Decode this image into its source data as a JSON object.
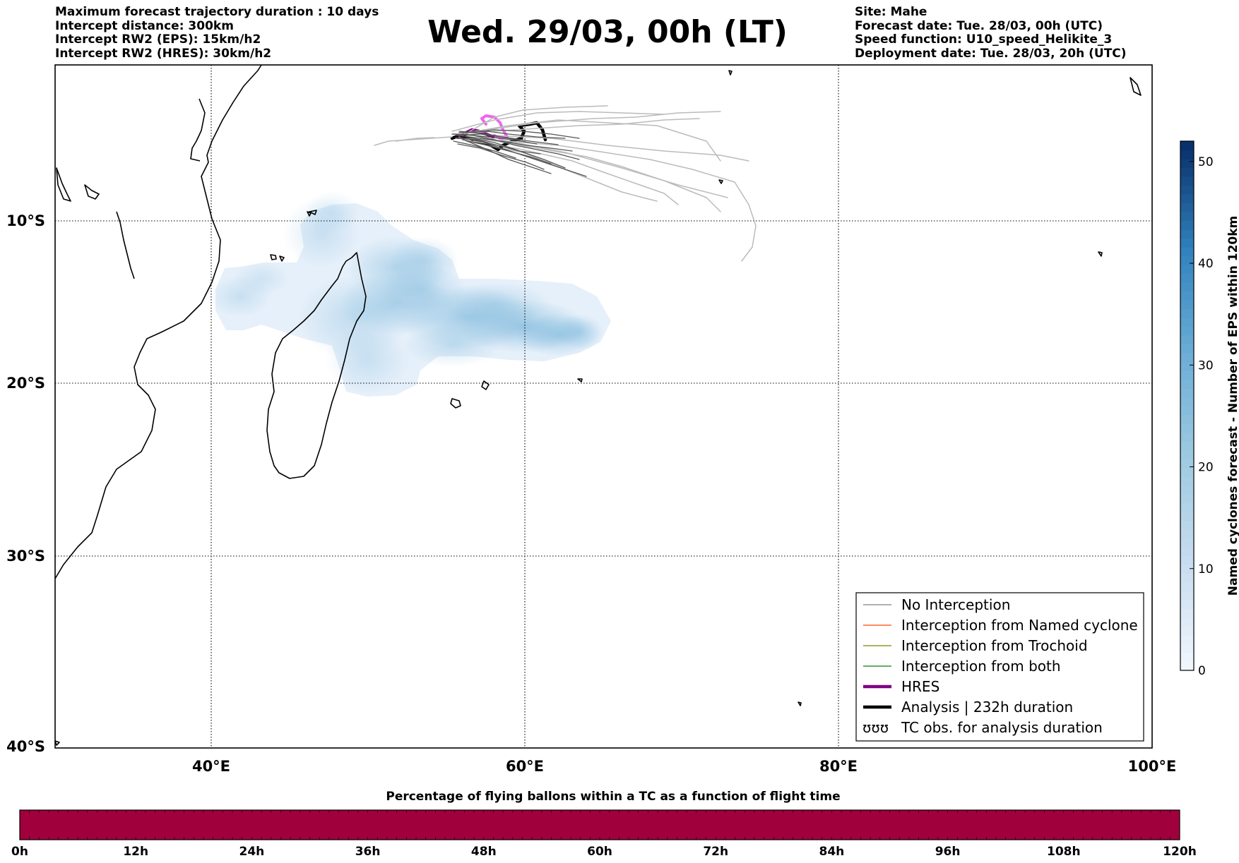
{
  "header_left": [
    "Maximum forecast trajectory duration : 10 days",
    "Intercept distance: 300km",
    "Intercept RW2 (EPS):  15km/h2",
    "Intercept RW2 (HRES): 30km/h2"
  ],
  "header_right": [
    "Site: Mahe",
    "Forecast date: Tue. 28/03, 00h (UTC)",
    "Speed function: U10_speed_Helikite_3",
    "Deployment date: Tue. 28/03, 20h (UTC)"
  ],
  "title": "Wed. 29/03, 00h (LT)",
  "map": {
    "lat_labels": [
      "10°S",
      "20°S",
      "30°S",
      "40°S"
    ],
    "lon_labels": [
      "40°E",
      "60°E",
      "80°E",
      "100°E"
    ],
    "grid": "dotted",
    "colors": {
      "heat": "#6aaed6",
      "analysis": "#000000",
      "hres": "#800080",
      "hres_light": "#ee66ee",
      "ensemble_dark": "#555555",
      "ensemble_light": "#bbbbbb"
    }
  },
  "legend": {
    "placement": "lower-right",
    "items": [
      {
        "label": "No Interception",
        "color": "#808080",
        "style": "thin-line"
      },
      {
        "label": "Interception from Named cyclone",
        "color": "#ff4500",
        "style": "thin-line"
      },
      {
        "label": "Interception from Trochoid",
        "color": "#808000",
        "style": "thin-line"
      },
      {
        "label": "Interception from both",
        "color": "#008000",
        "style": "thin-line"
      },
      {
        "label": "HRES",
        "color": "#800080",
        "style": "thick-line"
      },
      {
        "label": "Analysis | 232h duration",
        "color": "#000000",
        "style": "thick-line"
      },
      {
        "label": "TC obs. for analysis duration",
        "color": "#000000",
        "style": "cyclone-symbols",
        "symbol": "ʊʊʊ"
      }
    ]
  },
  "colorbar_right": {
    "label": "Named cyclones forecast - Number of EPS within 120km",
    "min": 0,
    "max": 52,
    "ticks": [
      "0",
      "10",
      "20",
      "30",
      "40",
      "50"
    ],
    "cmap": "Blues"
  },
  "flight_bar": {
    "title": "Percentage of flying ballons within a TC as a function of flight time",
    "color": "#a0003c",
    "ticks": [
      "0h",
      "12h",
      "24h",
      "36h",
      "48h",
      "60h",
      "72h",
      "84h",
      "96h",
      "108h",
      "120h"
    ]
  }
}
